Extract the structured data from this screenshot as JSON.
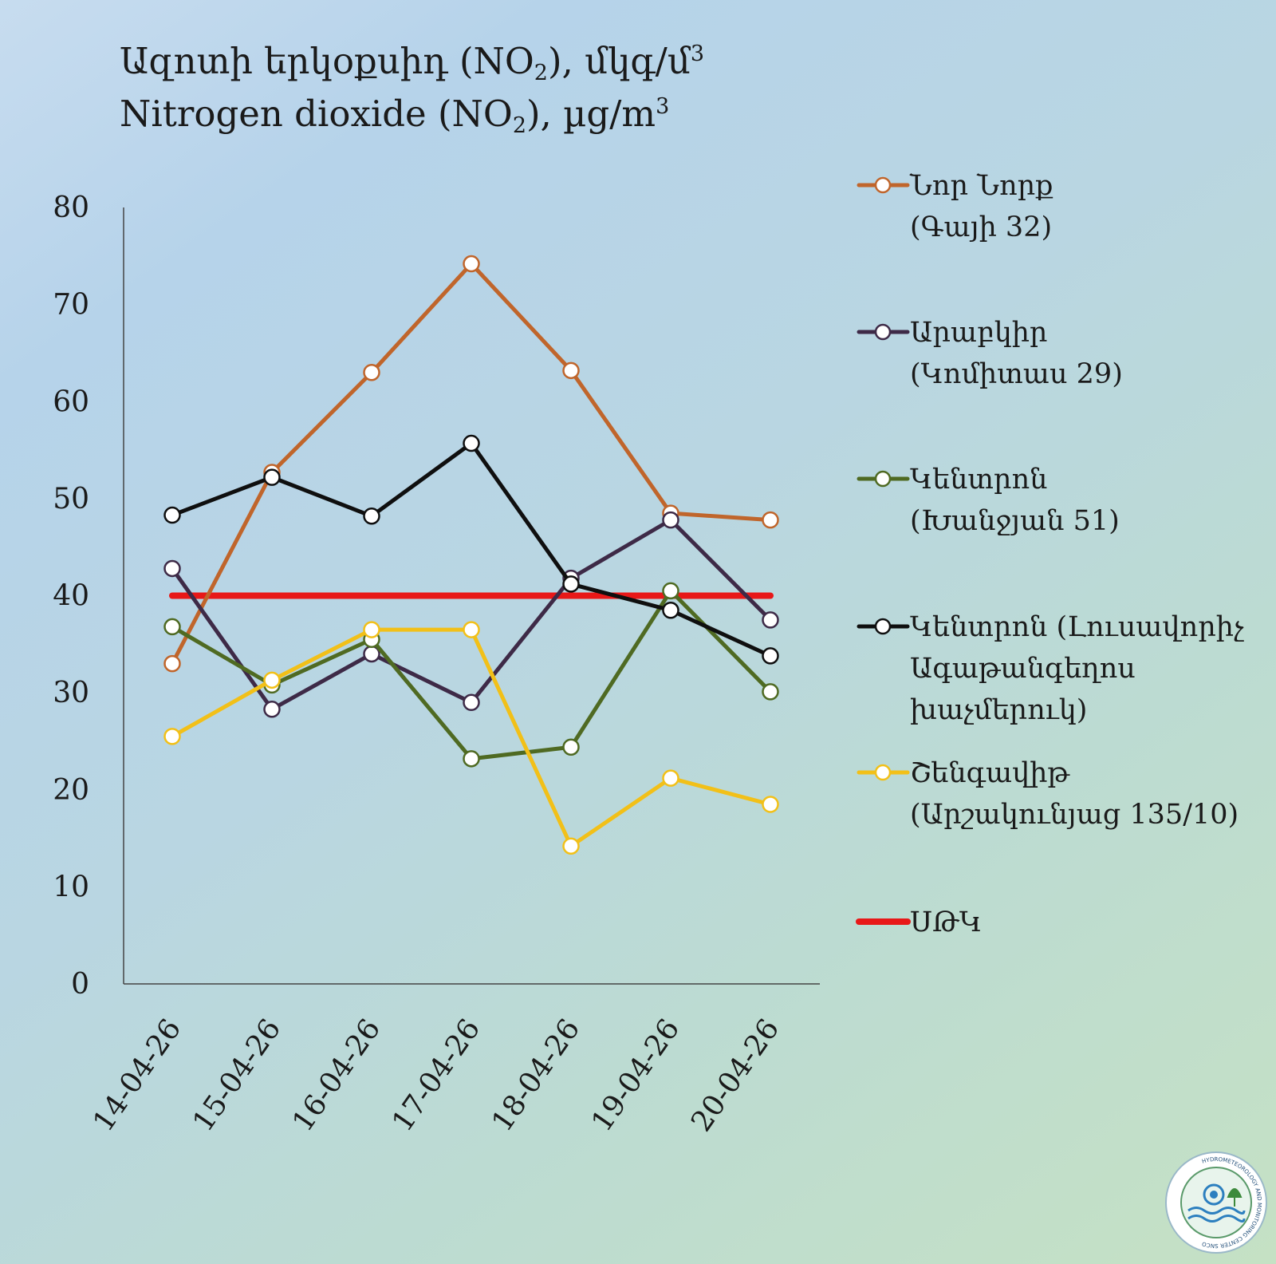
{
  "title": {
    "line1_main": "Ազոտի  երկօքսիդ (NO",
    "line1_sub": "2",
    "line1_end": "), մկգ/մ",
    "line1_sup": "3",
    "line2_main": "Nitrogen  dioxide (NO",
    "line2_sub": "2",
    "line2_end": "), µg/m",
    "line2_sup": "3"
  },
  "chart_data": {
    "type": "line",
    "title": "Ազոտի երկօքսիդ (NO2), մկգ/մ3 / Nitrogen dioxide (NO2), µg/m3",
    "xlabel": "",
    "ylabel": "",
    "ylim": [
      0,
      80
    ],
    "yticks": [
      0,
      10,
      20,
      30,
      40,
      50,
      60,
      70,
      80
    ],
    "grid": false,
    "legend_position": "right",
    "categories": [
      "14-04-26",
      "15-04-26",
      "16-04-26",
      "17-04-26",
      "18-04-26",
      "19-04-26",
      "20-04-26"
    ],
    "series": [
      {
        "name": "Նոր Նորք (Գայի 32)",
        "lines": [
          "Նոր Նորք",
          "(Գայի 32)"
        ],
        "color": "#c0652b",
        "marker": true,
        "values": [
          33,
          52.7,
          63,
          74.2,
          63.2,
          48.5,
          47.8
        ]
      },
      {
        "name": "Արաբկիր (Կոմիտաս 29)",
        "lines": [
          "Արաբկիր",
          "(Կոմիտաս 29)"
        ],
        "color": "#3e2a47",
        "marker": true,
        "values": [
          42.8,
          28.3,
          34,
          29,
          41.8,
          47.8,
          37.5
        ]
      },
      {
        "name": "Կենտրոն (Խանջյան 51)",
        "lines": [
          "Կենտրոն",
          "(Խանջյան 51)"
        ],
        "color": "#4f6a22",
        "marker": true,
        "values": [
          36.8,
          30.8,
          35.5,
          23.2,
          24.4,
          40.5,
          30.1
        ]
      },
      {
        "name": "Կենտրոն (Լուսավորիչ Ագաթանգեղոս խաչմերուկ)",
        "lines": [
          "Կենտրոն (Լուսավորիչ",
          "Ագաթանգեղոս",
          "խաչմերուկ)"
        ],
        "color": "#0f0f0f",
        "marker": true,
        "values": [
          48.3,
          52.2,
          48.2,
          55.7,
          41.2,
          38.5,
          33.8
        ]
      },
      {
        "name": "Շենգավիթ (Արշակունյաց 135/10)",
        "lines": [
          "Շենգավիթ",
          "(Արշակունյաց 135/10)"
        ],
        "color": "#f2c018",
        "marker": true,
        "values": [
          25.5,
          31.3,
          36.5,
          36.5,
          14.2,
          21.2,
          18.5
        ]
      },
      {
        "name": "ՍԹԿ",
        "lines": [
          "ՍԹԿ"
        ],
        "color": "#e81818",
        "marker": false,
        "values": [
          40,
          40,
          40,
          40,
          40,
          40,
          40
        ]
      }
    ]
  },
  "logo": {
    "caption": "HYDROMETEOROLOGY AND MONITORING CENTER SNCO"
  }
}
